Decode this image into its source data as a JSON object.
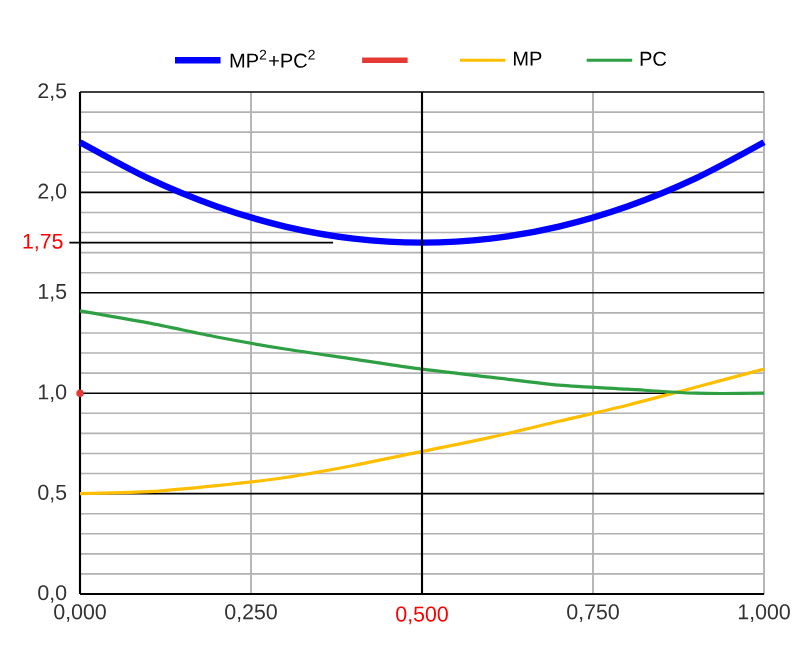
{
  "chart_data": {
    "type": "line",
    "x": [
      0,
      0.1,
      0.2,
      0.3,
      0.4,
      0.5,
      0.6,
      0.7,
      0.8,
      0.9,
      1
    ],
    "series": [
      {
        "name": "MP$^{2}$+PC$^{2}$",
        "color": "#0000ff",
        "values": [
          2.25,
          2.07,
          1.93,
          1.83,
          1.77,
          1.75,
          1.77,
          1.83,
          1.93,
          2.07,
          2.25
        ]
      },
      {
        "color": "#e53935",
        "x": [
          0
        ],
        "values": [
          1
        ],
        "marker": "circle"
      },
      {
        "name": "MP",
        "color": "#ffbf00",
        "values": [
          0.5,
          0.51,
          0.54,
          0.58,
          0.64,
          0.71,
          0.78,
          0.86,
          0.94,
          1.03,
          1.12
        ]
      },
      {
        "name": "PC",
        "color": "#2ea043",
        "values": [
          1.41,
          1.35,
          1.28,
          1.22,
          1.17,
          1.12,
          1.08,
          1.04,
          1.02,
          1.0,
          1.0
        ]
      }
    ],
    "xlim": [
      0,
      1
    ],
    "ylim": [
      0,
      2.5
    ],
    "xticks": [
      {
        "value": 0,
        "label": "0,000"
      },
      {
        "value": 0.25,
        "label": "0,250"
      },
      {
        "value": 0.75,
        "label": "0,750"
      },
      {
        "value": 1,
        "label": "1,000"
      }
    ],
    "yticks": [
      {
        "value": 0,
        "label": "0,0"
      },
      {
        "value": 0.5,
        "label": "0,5"
      },
      {
        "value": 1,
        "label": "1,0"
      },
      {
        "value": 1.5,
        "label": "1,5"
      },
      {
        "value": 2,
        "label": "2,0"
      },
      {
        "value": 2.5,
        "label": "2,5"
      }
    ],
    "ref_lines": [
      {
        "axis": "y",
        "value": 1.75,
        "label": "1,75"
      },
      {
        "axis": "x",
        "value": 0.5,
        "label": "0,500"
      }
    ],
    "grid": true,
    "legend": "top",
    "line_style": "solid"
  }
}
